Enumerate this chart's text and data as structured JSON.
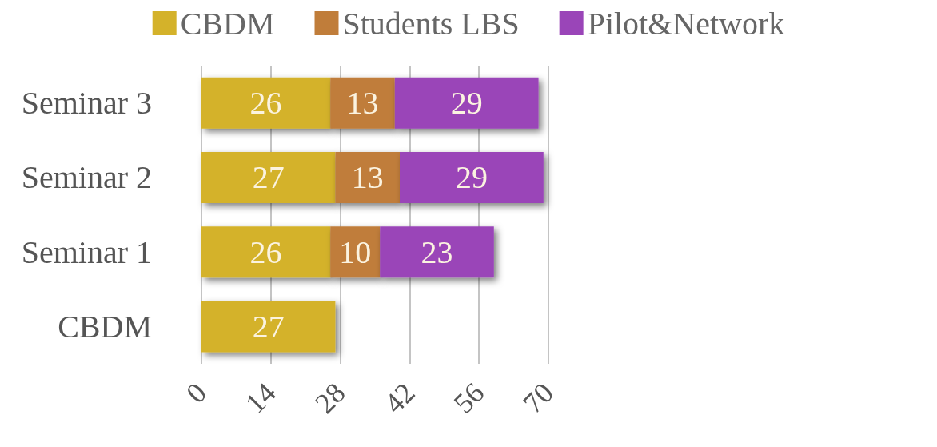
{
  "chart_data": {
    "type": "bar",
    "orientation": "horizontal",
    "stacked": true,
    "categories": [
      "Seminar 3",
      "Seminar 2",
      "Seminar 1",
      "CBDM"
    ],
    "series": [
      {
        "name": "CBDM",
        "color": "#d4b22a",
        "values": [
          26,
          27,
          26,
          27
        ]
      },
      {
        "name": "Students LBS",
        "color": "#c07d3a",
        "values": [
          13,
          13,
          10,
          null
        ]
      },
      {
        "name": "Pilot&Network",
        "color": "#9a45b8",
        "values": [
          29,
          29,
          23,
          null
        ]
      }
    ],
    "xlim": [
      0,
      70
    ],
    "xticks": [
      0,
      14,
      28,
      42,
      56,
      70
    ],
    "grid": "x",
    "legend": "top",
    "data_labels": true
  }
}
